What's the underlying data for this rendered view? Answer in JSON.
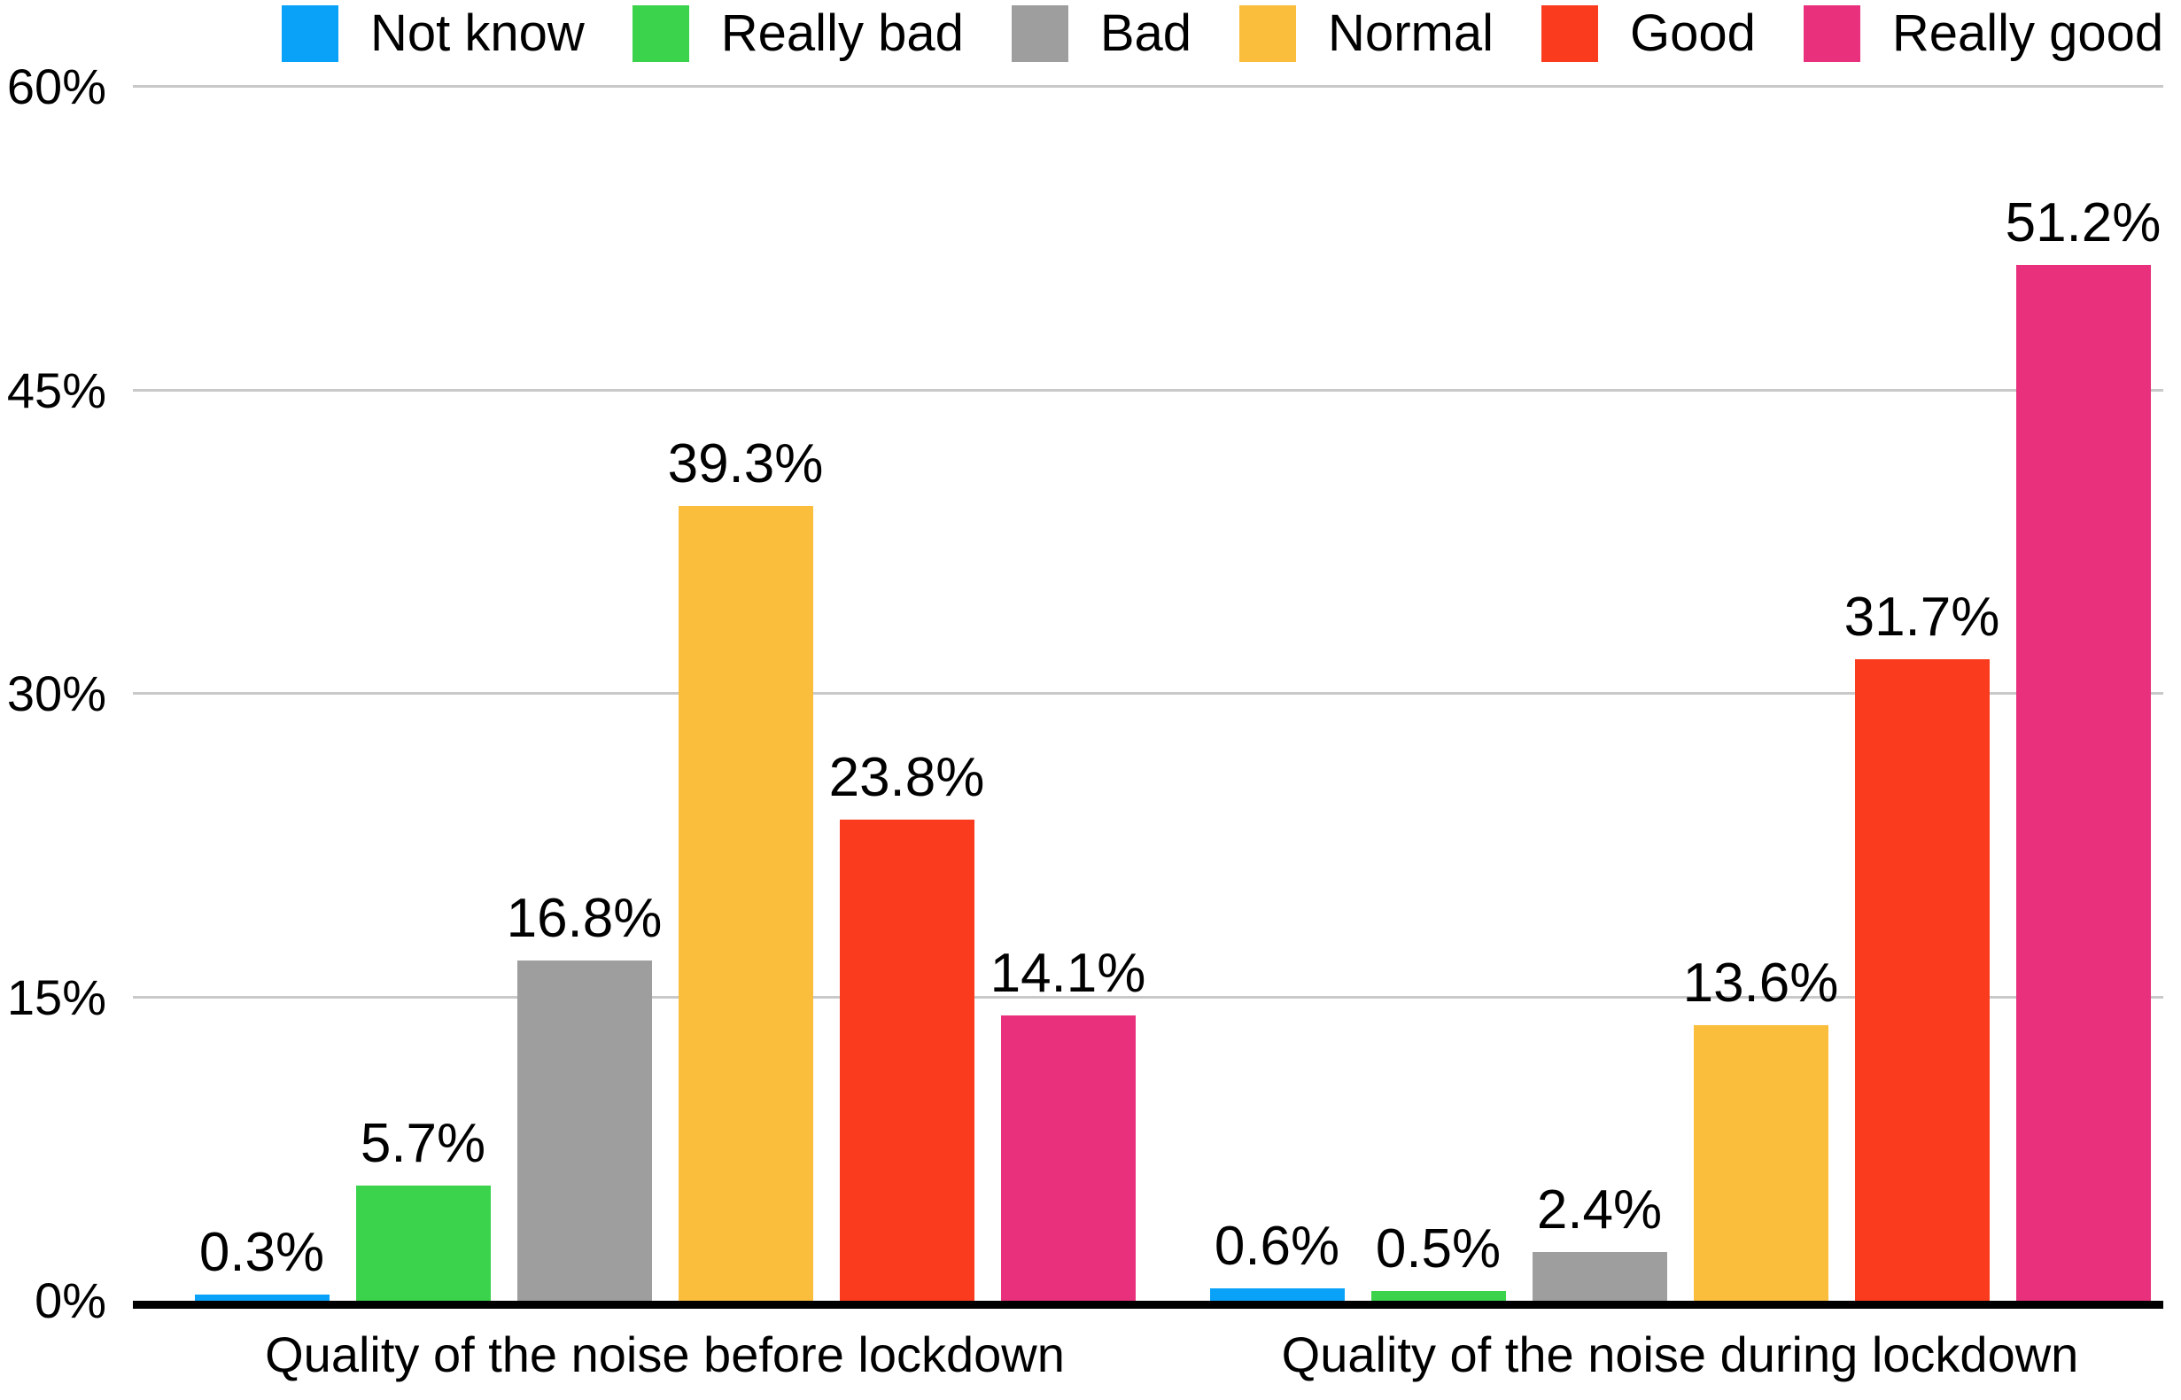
{
  "chart_data": {
    "type": "bar",
    "title": "",
    "groups": [
      "Quality of the noise before lockdown",
      "Quality of the noise during lockdown"
    ],
    "series": [
      {
        "name": "Not know",
        "color": "#09A2F8",
        "values": [
          0.3,
          0.6
        ],
        "labels": [
          "0.3%",
          "0.6%"
        ]
      },
      {
        "name": "Really bad",
        "color": "#3BD24C",
        "values": [
          5.7,
          0.5
        ],
        "labels": [
          "5.7%",
          "0.5%"
        ]
      },
      {
        "name": "Bad",
        "color": "#9E9E9E",
        "values": [
          16.8,
          2.4
        ],
        "labels": [
          "16.8%",
          "2.4%"
        ]
      },
      {
        "name": "Normal",
        "color": "#FBBD3C",
        "values": [
          39.3,
          13.6
        ],
        "labels": [
          "39.3%",
          "13.6%"
        ]
      },
      {
        "name": "Good",
        "color": "#FA3B1E",
        "values": [
          23.8,
          31.7
        ],
        "labels": [
          "23.8%",
          "31.7%"
        ]
      },
      {
        "name": "Really good",
        "color": "#E8307C",
        "values": [
          14.1,
          51.2
        ],
        "labels": [
          "14.1%",
          "51.2%"
        ]
      }
    ],
    "ylim": [
      0,
      60
    ],
    "yticks": [
      {
        "value": 0,
        "label": "0%"
      },
      {
        "value": 15,
        "label": "15%"
      },
      {
        "value": 30,
        "label": "30%"
      },
      {
        "value": 45,
        "label": "45%"
      },
      {
        "value": 60,
        "label": "60%"
      }
    ],
    "grid": true,
    "legend_position": "top"
  },
  "colors": {
    "background": "#FFFFFF",
    "grid": "#C9C9C9",
    "axis": "#000000",
    "text": "#000000"
  }
}
